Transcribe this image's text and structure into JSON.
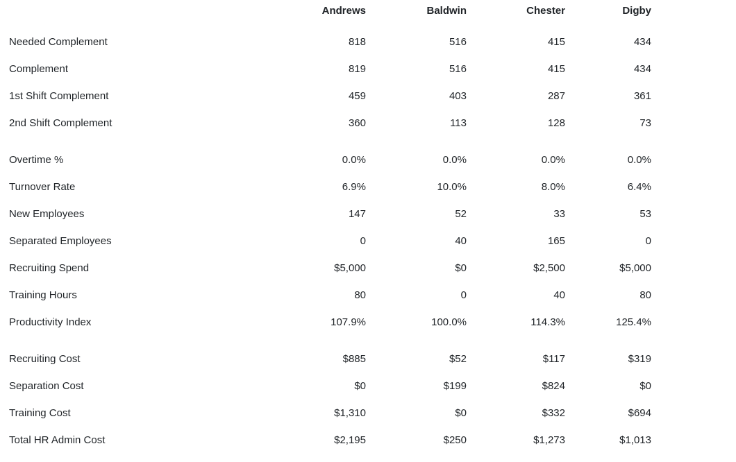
{
  "report": {
    "text_color": "#212529",
    "background_color": "#ffffff",
    "companies": [
      "Andrews",
      "Baldwin",
      "Chester",
      "Digby"
    ],
    "sections": [
      {
        "rows": [
          {
            "label": "Needed Complement",
            "values": [
              "818",
              "516",
              "415",
              "434"
            ]
          },
          {
            "label": "Complement",
            "values": [
              "819",
              "516",
              "415",
              "434"
            ]
          },
          {
            "label": "1st Shift Complement",
            "values": [
              "459",
              "403",
              "287",
              "361"
            ]
          },
          {
            "label": "2nd Shift Complement",
            "values": [
              "360",
              "113",
              "128",
              "73"
            ]
          }
        ]
      },
      {
        "rows": [
          {
            "label": "Overtime %",
            "values": [
              "0.0%",
              "0.0%",
              "0.0%",
              "0.0%"
            ]
          },
          {
            "label": "Turnover Rate",
            "values": [
              "6.9%",
              "10.0%",
              "8.0%",
              "6.4%"
            ]
          },
          {
            "label": "New Employees",
            "values": [
              "147",
              "52",
              "33",
              "53"
            ]
          },
          {
            "label": "Separated Employees",
            "values": [
              "0",
              "40",
              "165",
              "0"
            ]
          },
          {
            "label": "Recruiting Spend",
            "values": [
              "$5,000",
              "$0",
              "$2,500",
              "$5,000"
            ]
          },
          {
            "label": "Training Hours",
            "values": [
              "80",
              "0",
              "40",
              "80"
            ]
          },
          {
            "label": "Productivity Index",
            "values": [
              "107.9%",
              "100.0%",
              "114.3%",
              "125.4%"
            ]
          }
        ]
      },
      {
        "rows": [
          {
            "label": "Recruiting Cost",
            "values": [
              "$885",
              "$52",
              "$117",
              "$319"
            ]
          },
          {
            "label": "Separation Cost",
            "values": [
              "$0",
              "$199",
              "$824",
              "$0"
            ]
          },
          {
            "label": "Training Cost",
            "values": [
              "$1,310",
              "$0",
              "$332",
              "$694"
            ]
          },
          {
            "label": "Total HR Admin Cost",
            "values": [
              "$2,195",
              "$250",
              "$1,273",
              "$1,013"
            ]
          }
        ]
      }
    ]
  }
}
